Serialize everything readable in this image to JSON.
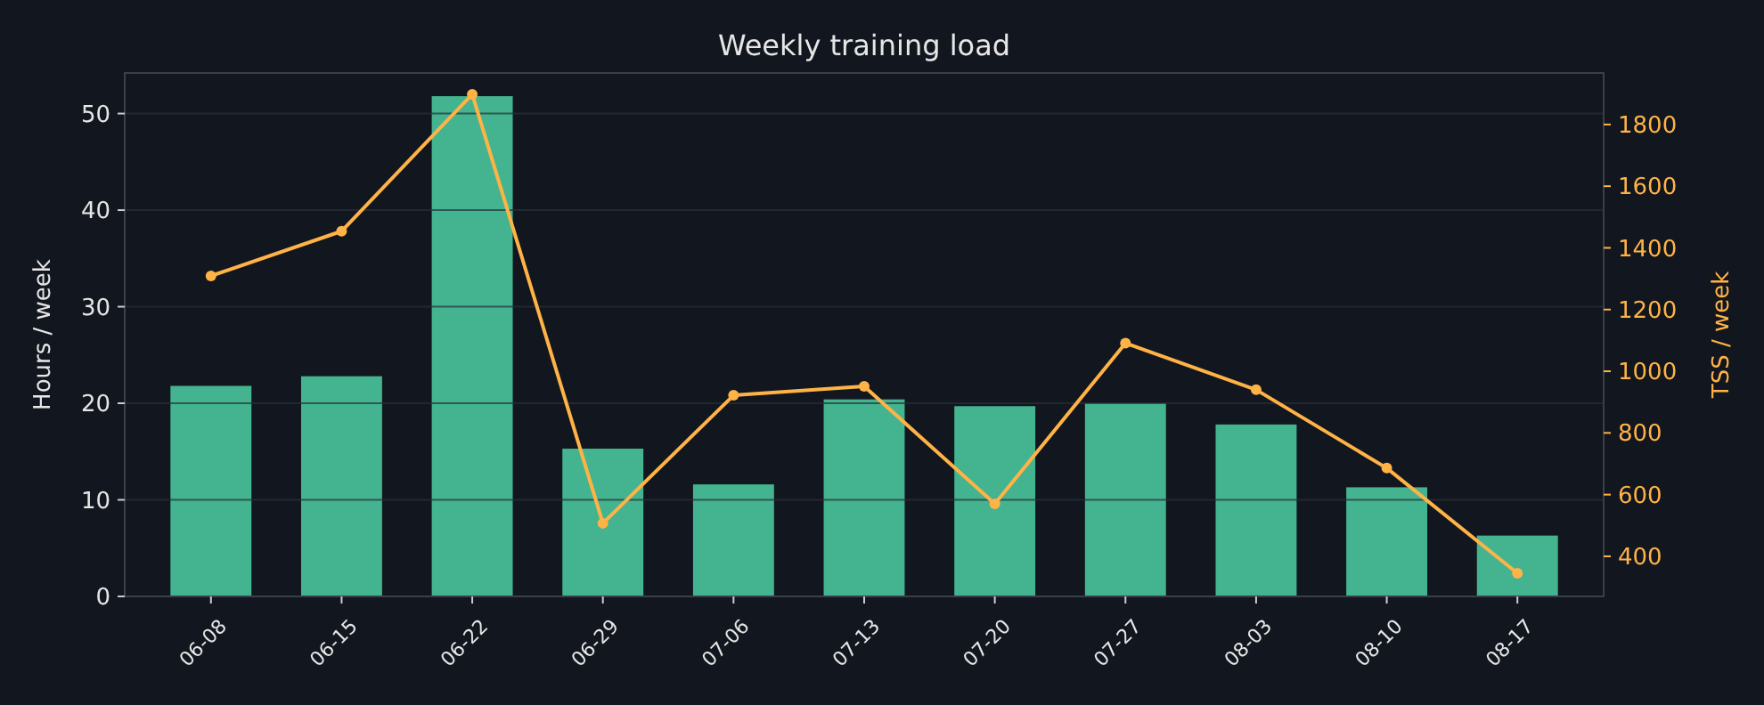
{
  "chart_data": {
    "type": "bar",
    "title": "Weekly training load",
    "ylabel": "Hours / week",
    "y2label": "TSS / week",
    "categories": [
      "06-08",
      "06-15",
      "06-22",
      "06-29",
      "07-06",
      "07-13",
      "07-20",
      "07-27",
      "08-03",
      "08-10",
      "08-17"
    ],
    "series": [
      {
        "color": "#43b48f",
        "values": [
          21.8,
          22.8,
          51.8,
          15.3,
          11.6,
          20.4,
          19.7,
          20.0,
          17.8,
          11.3,
          6.3
        ]
      },
      {
        "type": "line",
        "axis": "y2",
        "color": "#ffb347",
        "marker": "circle",
        "values": [
          1309,
          1454,
          1898,
          507,
          922,
          951,
          570,
          1091,
          940,
          686,
          345
        ]
      }
    ],
    "ylim": [
      0,
      54.2
    ],
    "yticks": [
      0,
      10,
      20,
      30,
      40,
      50
    ],
    "y2lim": [
      270,
      1967
    ],
    "y2ticks": [
      400,
      600,
      800,
      1000,
      1200,
      1400,
      1600,
      1800
    ],
    "grid": "y"
  }
}
